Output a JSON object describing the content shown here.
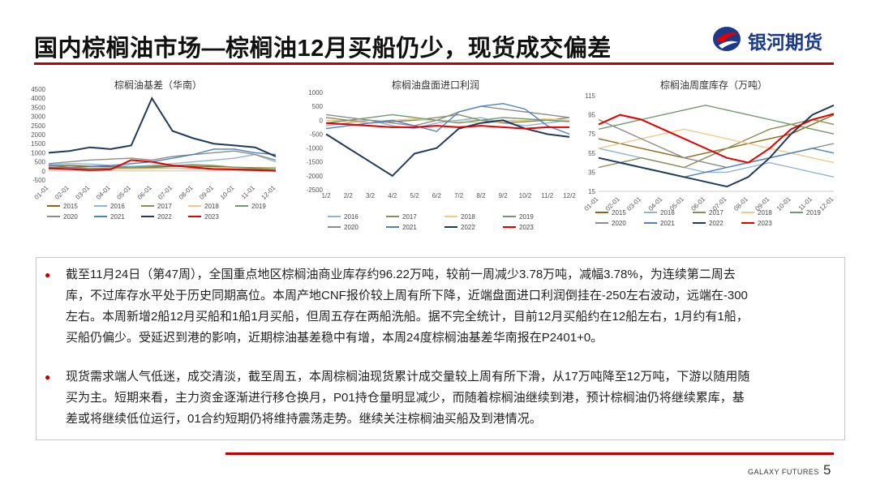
{
  "header": {
    "title": "国内棕榈油市场—棕榈油12月买船仍少，现货成交偏差",
    "logo_text": "银河期货"
  },
  "charts_meta": {
    "colors": {
      "2015": "#8b6914",
      "2016": "#8fb4d6",
      "2017": "#8c8c5a",
      "2018": "#f2c98a",
      "2019": "#6d9b6d",
      "2020": "#8c8c8c",
      "2021": "#4f81bd",
      "2022": "#1f3b5c",
      "2023": "#e00000"
    }
  },
  "chart_data": [
    {
      "type": "line",
      "title": "棕榈油基差（华南）",
      "y_ticks": [
        "4500",
        "4000",
        "3500",
        "3000",
        "2500",
        "2000",
        "1500",
        "1000",
        "500",
        "0",
        "-500"
      ],
      "ylim": [
        -500,
        4500
      ],
      "x_ticks": [
        "01-01",
        "02-01",
        "03-01",
        "04-01",
        "05-01",
        "06-01",
        "07-01",
        "08-01",
        "09-01",
        "10-01",
        "11-01",
        "12-01"
      ],
      "legend": [
        "2015",
        "2016",
        "2017",
        "2018",
        "2019",
        "2020",
        "2021",
        "2022",
        "2023"
      ],
      "series": [
        {
          "name": "2015",
          "values": [
            280,
            300,
            260,
            240,
            200,
            220,
            250,
            260,
            240,
            200,
            180,
            160
          ]
        },
        {
          "name": "2016",
          "values": [
            350,
            400,
            380,
            300,
            250,
            300,
            400,
            500,
            600,
            700,
            900,
            500
          ]
        },
        {
          "name": "2017",
          "values": [
            200,
            180,
            150,
            140,
            160,
            170,
            150,
            130,
            120,
            110,
            100,
            90
          ]
        },
        {
          "name": "2018",
          "values": [
            150,
            130,
            120,
            100,
            110,
            120,
            140,
            160,
            180,
            170,
            150,
            140
          ]
        },
        {
          "name": "2019",
          "values": [
            100,
            120,
            140,
            160,
            200,
            260,
            300,
            350,
            300,
            200,
            150,
            100
          ]
        },
        {
          "name": "2020",
          "values": [
            400,
            500,
            600,
            650,
            700,
            600,
            800,
            900,
            1000,
            1100,
            900,
            600
          ]
        },
        {
          "name": "2021",
          "values": [
            300,
            200,
            250,
            300,
            400,
            500,
            700,
            900,
            1200,
            1200,
            1000,
            900
          ]
        },
        {
          "name": "2022",
          "values": [
            1000,
            1100,
            1300,
            1200,
            1400,
            4000,
            2200,
            1800,
            1500,
            1400,
            1300,
            800
          ]
        },
        {
          "name": "2023",
          "values": [
            150,
            100,
            50,
            80,
            600,
            500,
            300,
            200,
            100,
            80,
            50,
            0
          ]
        }
      ]
    },
    {
      "type": "line",
      "title": "棕榈油盘面进口利润",
      "y_ticks": [
        "1000",
        "500",
        "0",
        "-500",
        "-1000",
        "-1500",
        "-2000",
        "-2500"
      ],
      "ylim": [
        -2500,
        1000
      ],
      "x_ticks": [
        "1/2",
        "2/2",
        "3/2",
        "4/2",
        "5/2",
        "6/2",
        "7/2",
        "8/2",
        "9/2",
        "10/2",
        "11/2",
        "12/2"
      ],
      "legend": [
        "2016",
        "2017",
        "2018",
        "2019",
        "2020",
        "2021",
        "2022",
        "2023"
      ],
      "series": [
        {
          "name": "2016",
          "values": [
            -200,
            -100,
            0,
            -200,
            -300,
            -100,
            0,
            100,
            -100,
            -200,
            -100,
            0
          ]
        },
        {
          "name": "2017",
          "values": [
            100,
            0,
            -100,
            -50,
            0,
            100,
            200,
            0,
            -100,
            -50,
            0,
            100
          ]
        },
        {
          "name": "2018",
          "values": [
            0,
            -50,
            -100,
            0,
            50,
            0,
            -50,
            -100,
            -50,
            0,
            50,
            0
          ]
        },
        {
          "name": "2019",
          "values": [
            -100,
            0,
            100,
            200,
            100,
            0,
            -100,
            0,
            100,
            50,
            0,
            -50
          ]
        },
        {
          "name": "2020",
          "values": [
            200,
            100,
            0,
            -100,
            -200,
            0,
            300,
            500,
            400,
            300,
            200,
            100
          ]
        },
        {
          "name": "2021",
          "values": [
            -300,
            -200,
            -100,
            0,
            -200,
            -400,
            300,
            500,
            600,
            400,
            -200,
            -500
          ]
        },
        {
          "name": "2022",
          "values": [
            -500,
            -1000,
            -1500,
            -2000,
            -1200,
            -1000,
            -300,
            -100,
            0,
            -300,
            -500,
            -600
          ]
        },
        {
          "name": "2023",
          "values": [
            -100,
            -150,
            -200,
            -250,
            -250,
            -200,
            -250,
            -200,
            -250,
            -300,
            -250,
            -250
          ]
        }
      ]
    },
    {
      "type": "line",
      "title": "棕榈油周度库存（万吨）",
      "y_ticks": [
        "115",
        "95",
        "75",
        "55",
        "35",
        "15"
      ],
      "ylim": [
        15,
        115
      ],
      "x_ticks": [
        "01-01",
        "02-01",
        "03-01",
        "04-01",
        "05-01",
        "06-01",
        "07-01",
        "08-01",
        "09-01",
        "10-01",
        "11-01",
        "12-01"
      ],
      "legend": [
        "2015",
        "2016",
        "2017",
        "2018",
        "2019",
        "2020",
        "2021",
        "2022",
        "2023"
      ],
      "series": [
        {
          "name": "2015",
          "values": [
            70,
            65,
            60,
            55,
            50,
            55,
            60,
            65,
            70,
            75,
            85,
            95
          ]
        },
        {
          "name": "2016",
          "values": [
            60,
            55,
            50,
            45,
            40,
            35,
            35,
            40,
            45,
            40,
            35,
            30
          ]
        },
        {
          "name": "2017",
          "values": [
            40,
            45,
            50,
            45,
            40,
            50,
            60,
            70,
            80,
            85,
            90,
            85
          ]
        },
        {
          "name": "2018",
          "values": [
            60,
            65,
            70,
            75,
            80,
            75,
            70,
            65,
            60,
            55,
            50,
            45
          ]
        },
        {
          "name": "2019",
          "values": [
            80,
            85,
            90,
            95,
            100,
            105,
            100,
            95,
            90,
            85,
            80,
            75
          ]
        },
        {
          "name": "2020",
          "values": [
            90,
            80,
            70,
            60,
            50,
            45,
            40,
            45,
            50,
            55,
            60,
            65
          ]
        },
        {
          "name": "2021",
          "values": [
            50,
            45,
            40,
            35,
            30,
            35,
            40,
            45,
            50,
            55,
            60,
            55
          ]
        },
        {
          "name": "2022",
          "values": [
            50,
            45,
            40,
            35,
            30,
            25,
            20,
            30,
            50,
            75,
            95,
            105
          ]
        },
        {
          "name": "2023",
          "values": [
            85,
            95,
            90,
            80,
            70,
            60,
            50,
            45,
            60,
            80,
            90,
            96
          ]
        }
      ]
    }
  ],
  "text": {
    "paragraphs": [
      [
        "截至11月24日（第47周），全国重点地区棕榈油商业库存约96.22万吨，较前一周减少3.78万吨，减幅3.78%，为连续第二周去",
        "库，不过库存水平处于历史同期高位。本周产地CNF报价较上周有所下降，近端盘面进口利润倒挂在-250左右波动，远端在-300",
        "左右。本周新增2船12月买船和1船1月买船，但周五存在两船洗船。据不完全统计，目前12月买船约在12船左右，1月约有1船，",
        "买船仍偏少。受延迟到港的影响，近期棕油基差稳中有增，本周24度棕榈油基差华南报在P2401+0。"
      ],
      [
        "现货需求端人气低迷，成交清淡，截至周五，本周棕榈油现货累计成交量较上周有所下滑，从17万吨降至12万吨，下游以随用随",
        "买为主。短期来看，主力资金逐渐进行移仓换月，P01持仓量明显减少，而随着棕榈油继续到港，预计棕榈油仍将继续累库，基",
        "差或将继续低位运行，01合约短期仍将维持震荡走势。继续关注棕榈油买船及到港情况。"
      ]
    ]
  },
  "footer": {
    "brand": "GALAXY FUTURES",
    "page": "5"
  }
}
